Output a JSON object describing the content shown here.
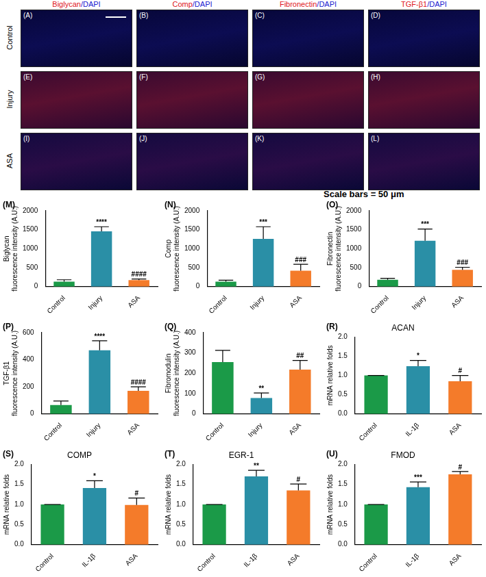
{
  "image_panels": {
    "column_headers": [
      [
        "Biglycan",
        "/DAPI"
      ],
      [
        "Comp",
        "/DAPI"
      ],
      [
        "Fibronectin",
        "/DAPI"
      ],
      [
        "TGF-β1",
        "/DAPI"
      ]
    ],
    "row_labels": [
      "Control",
      "Injury",
      "ASA"
    ],
    "panel_labels": [
      [
        "(A)",
        "(B)",
        "(C)",
        "(D)"
      ],
      [
        "(E)",
        "(F)",
        "(G)",
        "(H)"
      ],
      [
        "(I)",
        "(J)",
        "(K)",
        "(L)"
      ]
    ],
    "scale_bar": "Scale bars = 50 μm"
  },
  "chart_data": [
    {
      "type": "bar",
      "panel": "(M)",
      "y_label": [
        "Biglycan",
        "fluorescence intensity (A.U.)"
      ],
      "categories": [
        "Control",
        "Injury",
        "ASA"
      ],
      "values": [
        130,
        1460,
        170
      ],
      "errors": [
        50,
        120,
        30
      ],
      "significance": [
        null,
        "****",
        "####"
      ],
      "colors": [
        "#1b9a48",
        "#2a8fa6",
        "#f47b2a"
      ],
      "ylim": [
        0,
        2000
      ],
      "yticks": [
        0,
        500,
        1000,
        1500,
        2000
      ],
      "grid": false
    },
    {
      "type": "bar",
      "panel": "(N)",
      "y_label": [
        "Comp",
        "fluorescence intensity (A.U.)"
      ],
      "categories": [
        "Control",
        "Injury",
        "ASA"
      ],
      "values": [
        130,
        1260,
        420
      ],
      "errors": [
        40,
        320,
        170
      ],
      "significance": [
        null,
        "***",
        "###"
      ],
      "colors": [
        "#1b9a48",
        "#2a8fa6",
        "#f47b2a"
      ],
      "ylim": [
        0,
        2000
      ],
      "yticks": [
        0,
        500,
        1000,
        1500,
        2000
      ],
      "grid": false
    },
    {
      "type": "bar",
      "panel": "(O)",
      "y_label": [
        "Fibronectin",
        "fluorescence intensity (A.U.)"
      ],
      "categories": [
        "Control",
        "Injury",
        "ASA"
      ],
      "values": [
        180,
        1210,
        440
      ],
      "errors": [
        40,
        310,
        70
      ],
      "significance": [
        null,
        "***",
        "###"
      ],
      "colors": [
        "#1b9a48",
        "#2a8fa6",
        "#f47b2a"
      ],
      "ylim": [
        0,
        2000
      ],
      "yticks": [
        0,
        500,
        1000,
        1500,
        2000
      ],
      "grid": false
    },
    {
      "type": "bar",
      "panel": "(P)",
      "y_label": [
        "TGF-β1",
        "fluorescence intensity (A.U.)"
      ],
      "categories": [
        "Control",
        "Injury",
        "ASA"
      ],
      "values": [
        65,
        470,
        170
      ],
      "errors": [
        30,
        70,
        30
      ],
      "significance": [
        null,
        "****",
        "####"
      ],
      "colors": [
        "#1b9a48",
        "#2a8fa6",
        "#f47b2a"
      ],
      "ylim": [
        0,
        600
      ],
      "yticks": [
        0,
        200,
        400,
        600
      ],
      "grid": false
    },
    {
      "type": "bar",
      "panel": "(Q)",
      "y_label": [
        "Fibromodulin",
        "fluorescence intensity (A.U.)"
      ],
      "categories": [
        "Control",
        "Injury",
        "ASA"
      ],
      "values": [
        255,
        78,
        218
      ],
      "errors": [
        58,
        25,
        45
      ],
      "significance": [
        null,
        "**",
        "##"
      ],
      "colors": [
        "#1b9a48",
        "#2a8fa6",
        "#f47b2a"
      ],
      "ylim": [
        0,
        400
      ],
      "yticks": [
        0,
        100,
        200,
        300,
        400
      ],
      "grid": false
    },
    {
      "type": "bar",
      "panel": "(R)",
      "title": "ACAN",
      "y_label": "mRNA relative folds",
      "categories": [
        "Control",
        "IL-1β",
        "ASA"
      ],
      "values": [
        1.0,
        1.24,
        0.85
      ],
      "errors": [
        0,
        0.15,
        0.15
      ],
      "significance": [
        null,
        "*",
        "#"
      ],
      "colors": [
        "#1b9a48",
        "#2a8fa6",
        "#f47b2a"
      ],
      "ylim": [
        0,
        2
      ],
      "yticks": [
        {
          "value": 0,
          "label": "0.0"
        },
        0.5,
        {
          "value": 1,
          "label": "1.0"
        },
        1.5,
        {
          "value": 2,
          "label": "2.0"
        }
      ],
      "grid": false
    },
    {
      "type": "bar",
      "panel": "(S)",
      "title": "COMP",
      "y_label": "mRNA relative folds",
      "categories": [
        "Control",
        "IL-1β",
        "ASA"
      ],
      "values": [
        1.0,
        1.41,
        0.99
      ],
      "errors": [
        0,
        0.18,
        0.17
      ],
      "significance": [
        null,
        "*",
        "#"
      ],
      "colors": [
        "#1b9a48",
        "#2a8fa6",
        "#f47b2a"
      ],
      "ylim": [
        0,
        2
      ],
      "yticks": [
        {
          "value": 0,
          "label": "0.0"
        },
        0.5,
        {
          "value": 1,
          "label": "1.0"
        },
        1.5,
        {
          "value": 2,
          "label": "2.0"
        }
      ],
      "grid": false
    },
    {
      "type": "bar",
      "panel": "(T)",
      "title": "EGR-1",
      "y_label": "mRNA relative folds",
      "categories": [
        "Control",
        "IL-1β",
        "ASA"
      ],
      "values": [
        1.0,
        1.7,
        1.35
      ],
      "errors": [
        0,
        0.15,
        0.16
      ],
      "significance": [
        null,
        "**",
        "#"
      ],
      "colors": [
        "#1b9a48",
        "#2a8fa6",
        "#f47b2a"
      ],
      "ylim": [
        0,
        2
      ],
      "yticks": [
        {
          "value": 0,
          "label": "0.0"
        },
        0.5,
        {
          "value": 1,
          "label": "1.0"
        },
        1.5,
        {
          "value": 2,
          "label": "2.0"
        }
      ],
      "grid": false
    },
    {
      "type": "bar",
      "panel": "(U)",
      "title": "FMOD",
      "y_label": "mRNA relative folds",
      "categories": [
        "Control",
        "IL-1β",
        "ASA"
      ],
      "values": [
        1.0,
        1.43,
        1.75
      ],
      "errors": [
        0,
        0.13,
        0.07
      ],
      "significance": [
        null,
        "***",
        "#"
      ],
      "colors": [
        "#1b9a48",
        "#2a8fa6",
        "#f47b2a"
      ],
      "ylim": [
        0,
        2
      ],
      "yticks": [
        {
          "value": 0,
          "label": "0.0"
        },
        0.5,
        {
          "value": 1,
          "label": "1.0"
        },
        1.5,
        {
          "value": 2,
          "label": "2.0"
        }
      ],
      "grid": false
    }
  ]
}
